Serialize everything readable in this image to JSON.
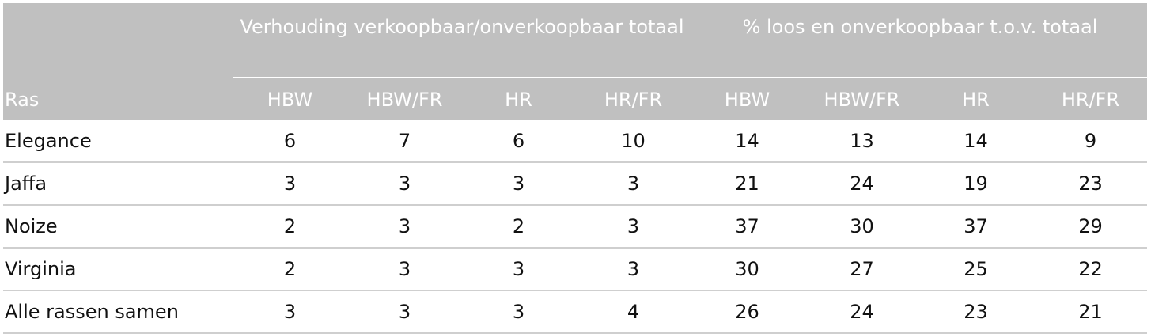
{
  "header": {
    "group1": "Verhouding verkoopbaar/onverkoopbaar totaal",
    "group2": "% loos en onverkoopbaar t.o.v. totaal",
    "columns": [
      "Ras",
      "HBW",
      "HBW/FR",
      "HR",
      "HR/FR",
      "HBW",
      "HBW/FR",
      "HR",
      "HR/FR"
    ]
  },
  "rows": [
    {
      "ras": "Elegance",
      "values": [
        "6",
        "7",
        "6",
        "10",
        "14",
        "13",
        "14",
        "9"
      ]
    },
    {
      "ras": "Jaffa",
      "values": [
        "3",
        "3",
        "3",
        "3",
        "21",
        "24",
        "19",
        "23"
      ]
    },
    {
      "ras": "Noize",
      "values": [
        "2",
        "3",
        "2",
        "3",
        "37",
        "30",
        "37",
        "29"
      ]
    },
    {
      "ras": "Virginia",
      "values": [
        "2",
        "3",
        "3",
        "3",
        "30",
        "27",
        "25",
        "22"
      ]
    },
    {
      "ras": "Alle rassen samen",
      "values": [
        "3",
        "3",
        "3",
        "4",
        "26",
        "24",
        "23",
        "21"
      ]
    }
  ],
  "colors": {
    "header_background": "#c0c0c0",
    "header_text": "#ffffff",
    "row_divider": "#cfcfcf"
  }
}
